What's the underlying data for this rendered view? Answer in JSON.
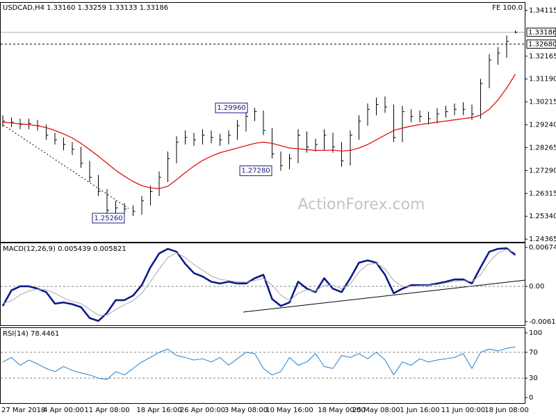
{
  "chart_data": [
    {
      "type": "ohlc",
      "title": "USDCAD,H4 1.33160 1.33259 1.33133 1.33186",
      "label": "FE 100.0",
      "watermark": "ActionForex.com",
      "color": "#000000",
      "high": [
        1.2965,
        1.2955,
        1.295,
        1.295,
        1.2945,
        1.2925,
        1.289,
        1.287,
        1.285,
        1.283,
        1.277,
        1.271,
        1.265,
        1.26,
        1.259,
        1.258,
        1.262,
        1.2665,
        1.2725,
        1.281,
        1.2875,
        1.29,
        1.289,
        1.2905,
        1.29,
        1.2885,
        1.29,
        1.2945,
        1.2996,
        1.2996,
        1.2985,
        1.291,
        1.281,
        1.28,
        1.2905,
        1.2895,
        1.2865,
        1.2905,
        1.289,
        1.285,
        1.29,
        1.2965,
        1.3015,
        1.304,
        1.3045,
        1.301,
        1.3005,
        1.299,
        1.2985,
        1.298,
        1.2995,
        1.3005,
        1.3015,
        1.302,
        1.301,
        1.312,
        1.3225,
        1.3255,
        1.3305,
        1.33259
      ],
      "low": [
        1.2915,
        1.2915,
        1.2905,
        1.2905,
        1.29,
        1.286,
        1.284,
        1.2815,
        1.2795,
        1.274,
        1.268,
        1.262,
        1.2526,
        1.2545,
        1.2545,
        1.2535,
        1.254,
        1.258,
        1.262,
        1.268,
        1.276,
        1.284,
        1.2835,
        1.284,
        1.2845,
        1.2835,
        1.284,
        1.286,
        1.2895,
        1.294,
        1.288,
        1.278,
        1.2728,
        1.2735,
        1.276,
        1.2805,
        1.281,
        1.2815,
        1.2805,
        1.2745,
        1.275,
        1.286,
        1.292,
        1.2965,
        1.2975,
        1.285,
        1.285,
        1.2935,
        1.2935,
        1.2925,
        1.293,
        1.2955,
        1.2965,
        1.2965,
        1.2945,
        1.295,
        1.308,
        1.318,
        1.321,
        1.33133
      ],
      "close": [
        1.294,
        1.2935,
        1.2925,
        1.293,
        1.292,
        1.288,
        1.286,
        1.284,
        1.282,
        1.276,
        1.27,
        1.264,
        1.256,
        1.257,
        1.2565,
        1.2555,
        1.26,
        1.264,
        1.27,
        1.278,
        1.285,
        1.287,
        1.286,
        1.288,
        1.287,
        1.286,
        1.288,
        1.292,
        1.296,
        1.298,
        1.29,
        1.28,
        1.275,
        1.278,
        1.288,
        1.283,
        1.284,
        1.288,
        1.283,
        1.277,
        1.288,
        1.294,
        1.299,
        1.301,
        1.3,
        1.287,
        1.298,
        1.296,
        1.296,
        1.295,
        1.297,
        1.298,
        1.299,
        1.299,
        1.297,
        1.31,
        1.32,
        1.323,
        1.328,
        1.33186
      ],
      "series": [
        {
          "color": "#e01010",
          "width": 1.3,
          "values": [
            1.2935,
            1.2932,
            1.2928,
            1.2925,
            1.292,
            1.2912,
            1.29,
            1.2885,
            1.2868,
            1.2845,
            1.2818,
            1.279,
            1.276,
            1.273,
            1.2705,
            1.2682,
            1.2665,
            1.2655,
            1.2652,
            1.2662,
            1.269,
            1.272,
            1.2748,
            1.2772,
            1.279,
            1.2805,
            1.2815,
            1.2825,
            1.2835,
            1.2845,
            1.285,
            1.2845,
            1.2835,
            1.2825,
            1.2822,
            1.2818,
            1.2815,
            1.2815,
            1.2816,
            1.2812,
            1.2815,
            1.2825,
            1.284,
            1.286,
            1.288,
            1.29,
            1.291,
            1.2918,
            1.2925,
            1.293,
            1.2935,
            1.294,
            1.2945,
            1.295,
            1.2955,
            1.2965,
            1.299,
            1.303,
            1.308,
            1.314
          ]
        }
      ],
      "ylim": [
        1.2425,
        1.3444
      ],
      "yticks": [
        1.34115,
        1.32165,
        {
          "value": 1.3119,
          "label": "1.31190"
        },
        1.30215,
        {
          "value": 1.2924,
          "label": "1.29240"
        },
        1.28265,
        {
          "value": 1.2729,
          "label": "1.27290"
        },
        1.26315,
        {
          "value": 1.2534,
          "label": "1.25340"
        },
        1.24365
      ],
      "price_lines": [
        1.33186,
        {
          "value": 1.3268,
          "label": "1.32680"
        }
      ],
      "price_line_styles": [
        "solid",
        "dashed"
      ],
      "annotations": [
        {
          "value": 1.2996,
          "label": "1.29960"
        },
        {
          "value": 1.2728,
          "label": "1.27280"
        },
        {
          "value": 1.2526,
          "label": "1.25260"
        }
      ]
    },
    {
      "type": "line",
      "title": "MACD(12,26,9) 0.005439 0.005821",
      "series": [
        {
          "color": "#0c1a8a",
          "width": 2.6,
          "values": [
            -0.0034,
            -0.0007,
            0,
            0,
            -0.0004,
            -0.001,
            -0.003,
            -0.0028,
            -0.0031,
            -0.0036,
            -0.0055,
            -0.006,
            -0.0046,
            -0.0024,
            -0.0024,
            -0.0016,
            0.0002,
            0.0033,
            0.0057,
            0.0065,
            0.006,
            0.0039,
            0.0023,
            0.0017,
            0.0008,
            0.0005,
            0.0008,
            0.0005,
            0.0005,
            0.0014,
            0.002,
            -0.0022,
            -0.0034,
            -0.0028,
            0.0008,
            -0.0004,
            -0.001,
            0.0014,
            -0.0004,
            -0.001,
            0.0014,
            0.0041,
            0.0045,
            0.0041,
            0.002,
            -0.0012,
            -0.0004,
            0.0002,
            0.0002,
            0.0002,
            0.0005,
            0.0008,
            0.0012,
            0.0012,
            0.0005,
            0.0033,
            0.006,
            0.0065,
            0.0066,
            0.005439
          ]
        },
        {
          "color": "#a8a8a8",
          "width": 1,
          "values": [
            -0.003,
            -0.0025,
            -0.0015,
            -0.0008,
            -0.0005,
            -0.0006,
            -0.0012,
            -0.002,
            -0.0026,
            -0.003,
            -0.004,
            -0.005,
            -0.005,
            -0.004,
            -0.0032,
            -0.0025,
            -0.0012,
            0.0008,
            0.003,
            0.005,
            0.0058,
            0.005,
            0.0038,
            0.0028,
            0.0018,
            0.0012,
            0.001,
            0.0008,
            0.0007,
            0.001,
            0.0014,
            0.0002,
            -0.0015,
            -0.0025,
            -0.0012,
            -0.0006,
            -0.0008,
            0.0002,
            0.0002,
            -0.0004,
            0.0004,
            0.0025,
            0.0038,
            0.004,
            0.003,
            0.001,
            0.0,
            0.0,
            0.0001,
            0.0002,
            0.0003,
            0.0006,
            0.0009,
            0.001,
            0.0008,
            0.002,
            0.0042,
            0.0058,
            0.0064,
            0.005821
          ]
        }
      ],
      "ylim": [
        -0.00675,
        0.00747
      ],
      "yticks": [
        0.006745,
        {
          "value": 0,
          "label": "0.00"
        },
        -0.006119
      ],
      "levels": [
        0
      ]
    },
    {
      "type": "line",
      "title": "RSI(14) 78.4461",
      "series": [
        {
          "color": "#1e7fd0",
          "width": 1,
          "values": [
            55,
            62,
            50,
            58,
            52,
            45,
            40,
            48,
            42,
            38,
            35,
            30,
            28,
            40,
            35,
            45,
            55,
            62,
            70,
            75,
            65,
            62,
            58,
            60,
            55,
            62,
            50,
            60,
            70,
            68,
            45,
            35,
            40,
            62,
            50,
            55,
            68,
            48,
            45,
            65,
            62,
            68,
            60,
            70,
            58,
            35,
            55,
            50,
            60,
            55,
            58,
            60,
            62,
            68,
            45,
            70,
            75,
            72,
            76,
            78.4461
          ]
        }
      ],
      "ylim": [
        -8.6,
        107.5
      ],
      "yticks": [
        100,
        70,
        30,
        0
      ],
      "levels": [
        70,
        30
      ],
      "categories": [
        null,
        "27 Mar 2018",
        null,
        null,
        null,
        null,
        null,
        "4 Apr 00:00",
        null,
        null,
        null,
        null,
        "11 Apr 08:00",
        null,
        null,
        null,
        null,
        null,
        "18 Apr 16:00",
        null,
        null,
        null,
        null,
        "26 Apr 00:00",
        null,
        null,
        null,
        null,
        "3 May 08:00",
        null,
        null,
        null,
        null,
        "10 May 16:00",
        null,
        null,
        null,
        null,
        null,
        "18 May 00:00",
        null,
        null,
        null,
        "25 May 08:00",
        null,
        null,
        null,
        null,
        "1 Jun 16:00",
        null,
        null,
        null,
        null,
        "11 Jun 00:00",
        null,
        null,
        null,
        null,
        "18 Jun 08:00",
        null
      ]
    }
  ]
}
